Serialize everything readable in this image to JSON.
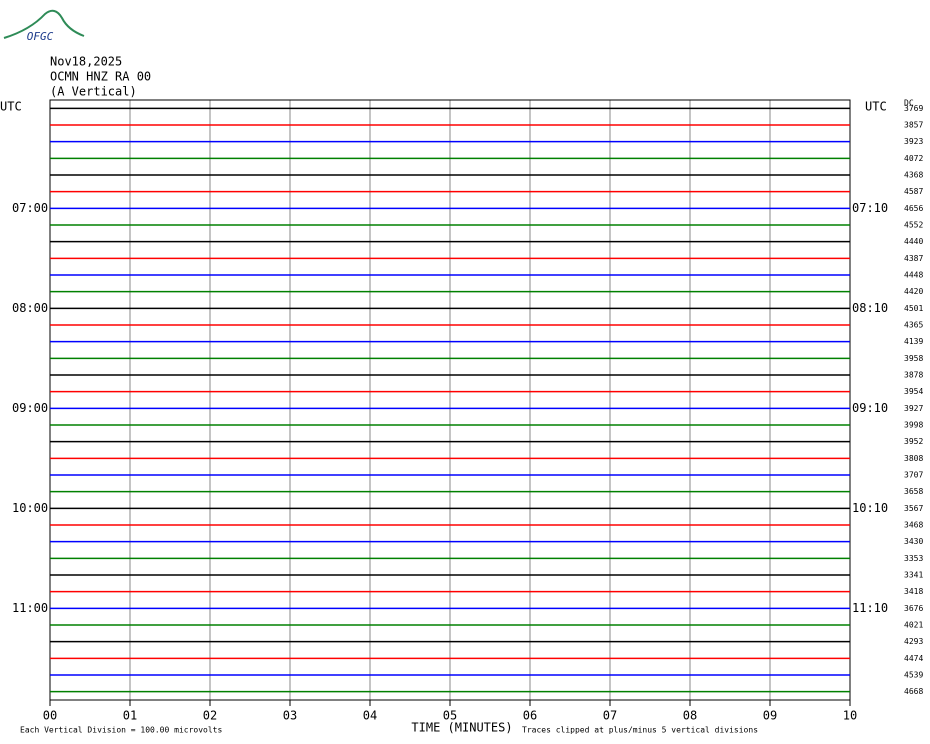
{
  "chart_data": {
    "type": "helicorder",
    "logo": "OFGC",
    "title_lines": [
      "Nov18,2025",
      "OCMN HNZ RA 00",
      "(A Vertical)"
    ],
    "left_axis_title": "UTC",
    "right_axis_title": "UTC",
    "offset_title": "DC",
    "row_labels_left": [
      null,
      null,
      null,
      null,
      null,
      null,
      "07:00",
      null,
      null,
      null,
      null,
      null,
      "08:00",
      null,
      null,
      null,
      null,
      null,
      "09:00",
      null,
      null,
      null,
      null,
      null,
      "10:00",
      null,
      null,
      null,
      null,
      null,
      "11:00",
      null,
      null,
      null,
      null,
      null
    ],
    "row_labels_right": [
      null,
      null,
      null,
      null,
      null,
      null,
      "07:10",
      null,
      null,
      null,
      null,
      null,
      "08:10",
      null,
      null,
      null,
      null,
      null,
      "09:10",
      null,
      null,
      null,
      null,
      null,
      "10:10",
      null,
      null,
      null,
      null,
      null,
      "11:10",
      null,
      null,
      null,
      null,
      null
    ],
    "trace_offsets": [
      3769,
      3857,
      3923,
      4072,
      4368,
      4587,
      4656,
      4552,
      4440,
      4387,
      4448,
      4420,
      4501,
      4365,
      4139,
      3958,
      3878,
      3954,
      3927,
      3998,
      3952,
      3808,
      3707,
      3658,
      3567,
      3468,
      3430,
      3353,
      3341,
      3418,
      3676,
      4021,
      4293,
      4474,
      4539,
      4668
    ],
    "trace_colors": [
      "#000000",
      "#ff0000",
      "#0000ff",
      "#008000"
    ],
    "xlim": [
      0,
      10
    ],
    "xticks": [
      {
        "value": 0,
        "label": "00"
      },
      {
        "value": 1,
        "label": "01"
      },
      {
        "value": 2,
        "label": "02"
      },
      {
        "value": 3,
        "label": "03"
      },
      {
        "value": 4,
        "label": "04"
      },
      {
        "value": 5,
        "label": "05"
      },
      {
        "value": 6,
        "label": "06"
      },
      {
        "value": 7,
        "label": "07"
      },
      {
        "value": 8,
        "label": "08"
      },
      {
        "value": 9,
        "label": "09"
      },
      {
        "value": 10,
        "label": "10"
      }
    ],
    "grid": true,
    "xlabel": "TIME (MINUTES)",
    "scale_note": "Each Vertical Division =  100.00 microvolts",
    "clip_note": "Traces clipped at plus/minus 5 vertical divisions"
  }
}
